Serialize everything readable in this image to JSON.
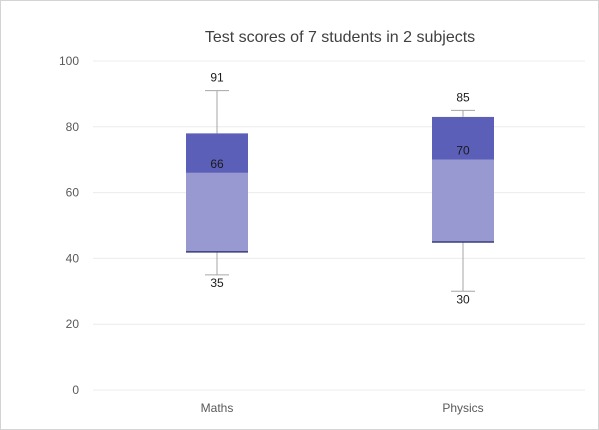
{
  "chart_data": {
    "type": "box",
    "title": "Test scores of 7 students in 2 subjects",
    "xlabel": "",
    "ylabel": "",
    "ylim": [
      0,
      100
    ],
    "y_ticks": [
      0,
      20,
      40,
      60,
      80,
      100
    ],
    "y_tick_labels": [
      "0",
      "20",
      "40",
      "60",
      "80",
      "100"
    ],
    "grid": true,
    "legend": "none",
    "categories": [
      "Maths",
      "Physics"
    ],
    "boxes": [
      {
        "category": "Maths",
        "min": 35,
        "q1": 42,
        "median": 66,
        "q3": 78,
        "max": 91,
        "min_label": "35",
        "median_label": "66",
        "max_label": "91"
      },
      {
        "category": "Physics",
        "min": 30,
        "q1": 45,
        "median": 70,
        "q3": 83,
        "max": 85,
        "min_label": "30",
        "median_label": "70",
        "max_label": "85"
      }
    ],
    "colors": {
      "lower_box": "#9999d1",
      "upper_box": "#5c5fb8",
      "whisker": "#a6a6a6",
      "grid": "#ececec"
    }
  }
}
